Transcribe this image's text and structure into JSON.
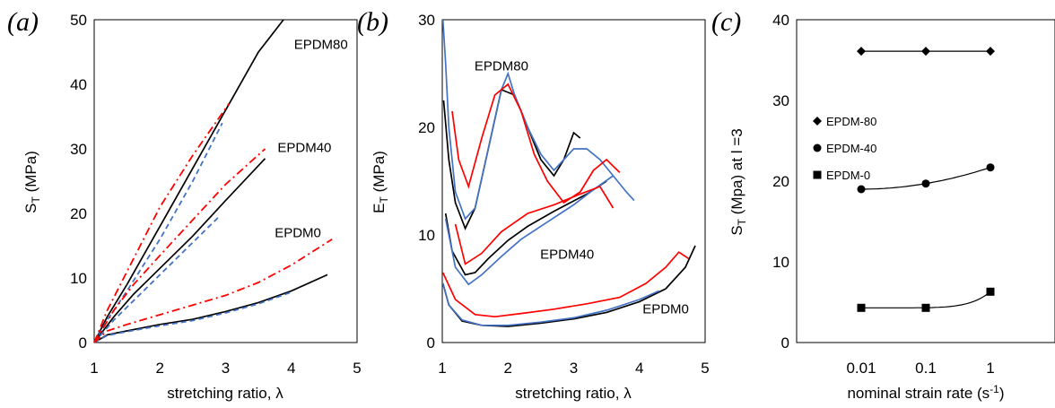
{
  "chart_data": [
    {
      "type": "line",
      "panel_label": "(a)",
      "xlabel": "stretching ratio, λ",
      "ylabel": "S",
      "ylabel_sub": "T",
      "ylabel_unit": " (MPa)",
      "xlim": [
        1,
        5
      ],
      "ylim": [
        0,
        50
      ],
      "x_ticks": [
        "1",
        "2",
        "3",
        "4",
        "5"
      ],
      "y_ticks": [
        "0",
        "10",
        "20",
        "30",
        "40",
        "50"
      ],
      "curve_labels": [
        {
          "text": "EPDM80",
          "x": 4.45,
          "y": 45.5
        },
        {
          "text": "EPDM40",
          "x": 4.2,
          "y": 29.5
        },
        {
          "text": "EPDM0",
          "x": 4.1,
          "y": 16.3
        }
      ],
      "series": [
        {
          "color": "#000000",
          "dash": "solid",
          "x": [
            1,
            1.2,
            1.5,
            2,
            2.5,
            3,
            3.5,
            3.88
          ],
          "y": [
            0,
            4,
            9,
            18,
            27,
            36,
            45,
            50
          ]
        },
        {
          "color": "#4472C4",
          "dash": "dashed",
          "x": [
            1,
            1.2,
            1.5,
            2,
            2.5,
            2.95
          ],
          "y": [
            0,
            3.5,
            8,
            16,
            25,
            34
          ]
        },
        {
          "color": "#FF0000",
          "dash": "dashdot",
          "x": [
            1,
            1.2,
            1.5,
            2,
            2.5,
            3.05
          ],
          "y": [
            0,
            5,
            11,
            21,
            29,
            37
          ]
        },
        {
          "color": "#000000",
          "dash": "solid",
          "x": [
            1,
            1.3,
            1.6,
            2,
            2.5,
            3,
            3.6
          ],
          "y": [
            0,
            4,
            7.5,
            11.5,
            16.5,
            22,
            28.5
          ]
        },
        {
          "color": "#4472C4",
          "dash": "dashed",
          "x": [
            1,
            1.3,
            1.6,
            2,
            2.5,
            2.9
          ],
          "y": [
            0,
            3.5,
            6.5,
            10.5,
            15.5,
            19.5
          ]
        },
        {
          "color": "#FF0000",
          "dash": "dashdot",
          "x": [
            1,
            1.3,
            1.6,
            2,
            2.5,
            3,
            3.6
          ],
          "y": [
            0,
            5,
            9,
            13.5,
            19,
            24.5,
            30
          ]
        },
        {
          "color": "#000000",
          "dash": "solid",
          "x": [
            1,
            1.2,
            1.5,
            2,
            2.5,
            3,
            3.5,
            4,
            4.55
          ],
          "y": [
            0,
            1.2,
            1.8,
            2.8,
            3.6,
            4.8,
            6.2,
            8,
            10.5
          ]
        },
        {
          "color": "#4472C4",
          "dash": "dashed",
          "x": [
            1,
            1.2,
            1.5,
            2,
            2.5,
            3,
            3.5,
            4
          ],
          "y": [
            0,
            1.1,
            1.7,
            2.6,
            3.4,
            4.6,
            6,
            7.8
          ]
        },
        {
          "color": "#FF0000",
          "dash": "dashdot",
          "x": [
            1,
            1.2,
            1.5,
            2,
            2.5,
            3,
            3.5,
            4,
            4.62
          ],
          "y": [
            0,
            1.8,
            2.8,
            4.3,
            5.8,
            7.3,
            9.3,
            12,
            16
          ]
        }
      ]
    },
    {
      "type": "line",
      "panel_label": "(b)",
      "xlabel": "stretching ratio, λ",
      "ylabel": "E",
      "ylabel_sub": "T",
      "ylabel_unit": " (MPa)",
      "xlim": [
        1,
        5
      ],
      "ylim": [
        0,
        30
      ],
      "x_ticks": [
        "1",
        "2",
        "3",
        "4",
        "5"
      ],
      "y_ticks": [
        "0",
        "10",
        "20",
        "30"
      ],
      "curve_labels": [
        {
          "text": "EPDM80",
          "x": 1.9,
          "y": 25.3
        },
        {
          "text": "EPDM40",
          "x": 2.9,
          "y": 7.8
        },
        {
          "text": "EPDM0",
          "x": 4.4,
          "y": 2.7
        }
      ],
      "series": [
        {
          "color": "#000000",
          "dash": "solid",
          "x": [
            1.02,
            1.1,
            1.2,
            1.35,
            1.5,
            1.7,
            1.9,
            2.1,
            2.3,
            2.5,
            2.7,
            2.85,
            3,
            3.1
          ],
          "y": [
            22.5,
            17,
            13,
            10.6,
            12.5,
            18,
            23.5,
            23,
            20,
            17,
            15.5,
            17,
            19.5,
            19
          ]
        },
        {
          "color": "#4472C4",
          "dash": "solid",
          "x": [
            1.01,
            1.05,
            1.1,
            1.2,
            1.35,
            1.5,
            1.7,
            1.9,
            2,
            2.1,
            2.3,
            2.5,
            2.7,
            3,
            3.2,
            3.4,
            3.6,
            3.8,
            3.92
          ],
          "y": [
            30,
            26,
            20,
            14,
            11.5,
            12.5,
            18,
            23.5,
            25,
            23,
            20,
            17.5,
            16,
            18,
            18,
            17,
            15.5,
            14,
            13.2
          ]
        },
        {
          "color": "#FF0000",
          "dash": "solid",
          "x": [
            1.15,
            1.25,
            1.4,
            1.6,
            1.8,
            2,
            2.2,
            2.4,
            2.6,
            2.85,
            3.1,
            3.3,
            3.5,
            3.7
          ],
          "y": [
            21.5,
            17,
            14.5,
            19,
            23,
            24,
            21.5,
            17.5,
            15,
            13,
            14,
            16,
            17,
            15.8
          ]
        },
        {
          "color": "#000000",
          "dash": "solid",
          "x": [
            1.05,
            1.15,
            1.35,
            1.5,
            1.7,
            2,
            2.3,
            2.7,
            3.2,
            3.5
          ],
          "y": [
            12,
            8.5,
            6.3,
            6.5,
            7.8,
            9.5,
            10.8,
            12.2,
            13.8,
            15
          ]
        },
        {
          "color": "#4472C4",
          "dash": "solid",
          "x": [
            1.05,
            1.2,
            1.4,
            1.6,
            1.9,
            2.2,
            2.6,
            3,
            3.3,
            3.6
          ],
          "y": [
            11.5,
            7,
            5.4,
            6.3,
            8,
            9.6,
            11.2,
            12.8,
            14.2,
            15.5
          ]
        },
        {
          "color": "#FF0000",
          "dash": "solid",
          "x": [
            1.2,
            1.35,
            1.6,
            1.9,
            2.3,
            2.7,
            3.1,
            3.4,
            3.6
          ],
          "y": [
            11,
            7.3,
            8.3,
            10.3,
            12,
            12.8,
            13.8,
            14.5,
            12.5
          ]
        },
        {
          "color": "#000000",
          "dash": "solid",
          "x": [
            1.01,
            1.1,
            1.3,
            1.6,
            2,
            2.5,
            3,
            3.5,
            4,
            4.4,
            4.7,
            4.85
          ],
          "y": [
            5.5,
            3.5,
            2,
            1.6,
            1.5,
            1.8,
            2.2,
            2.8,
            3.8,
            5,
            7,
            9
          ]
        },
        {
          "color": "#4472C4",
          "dash": "solid",
          "x": [
            1.01,
            1.1,
            1.3,
            1.6,
            2,
            2.5,
            3,
            3.5,
            4,
            4.3
          ],
          "y": [
            5.5,
            3.5,
            2.1,
            1.6,
            1.6,
            1.9,
            2.3,
            3,
            4,
            4.8
          ]
        },
        {
          "color": "#FF0000",
          "dash": "solid",
          "x": [
            1.01,
            1.2,
            1.5,
            1.8,
            2.2,
            2.7,
            3.2,
            3.7,
            4.1,
            4.4,
            4.6,
            4.75
          ],
          "y": [
            6.5,
            4,
            2.6,
            2.4,
            2.7,
            3.1,
            3.6,
            4.2,
            5.5,
            7,
            8.4,
            7.8
          ]
        }
      ]
    },
    {
      "type": "scatter",
      "panel_label": "(c)",
      "xlabel": "nominal strain rate (s",
      "xlabel_sup": "-1",
      "xlabel_end": ")",
      "ylabel": "S",
      "ylabel_sub": "T",
      "ylabel_unit": " (Mpa) at l =3",
      "x_scale": "log",
      "xlim": [
        0.001,
        10
      ],
      "ylim": [
        0,
        40
      ],
      "x_ticks": [
        "0.01",
        "0.1",
        "1"
      ],
      "y_ticks": [
        "0",
        "10",
        "20",
        "30",
        "40"
      ],
      "legend_position": "left",
      "legend": [
        {
          "label": "EPDM-80",
          "marker": "diamond"
        },
        {
          "label": "EPDM-40",
          "marker": "circle"
        },
        {
          "label": "EPDM-0",
          "marker": "square"
        }
      ],
      "series": [
        {
          "name": "EPDM-80",
          "marker": "diamond",
          "x": [
            0.01,
            0.1,
            1
          ],
          "y": [
            36.1,
            36.1,
            36.1
          ]
        },
        {
          "name": "EPDM-40",
          "marker": "circle",
          "x": [
            0.01,
            0.1,
            1
          ],
          "y": [
            19,
            19.7,
            21.7
          ]
        },
        {
          "name": "EPDM-0",
          "marker": "square",
          "x": [
            0.01,
            0.1,
            1
          ],
          "y": [
            4.3,
            4.3,
            6.3
          ]
        }
      ]
    }
  ]
}
